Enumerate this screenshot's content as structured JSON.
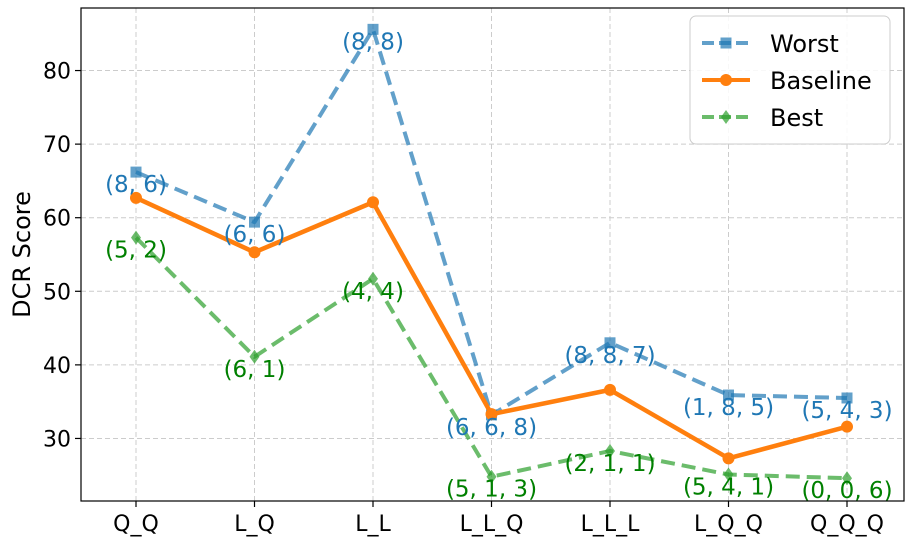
{
  "chart_data": {
    "type": "line",
    "title": "",
    "xlabel": "",
    "ylabel": "DCR Score",
    "categories": [
      "Q_Q",
      "L_Q",
      "L_L",
      "L_L_Q",
      "L_L_L",
      "L_Q_Q",
      "Q_Q_Q"
    ],
    "ylim": [
      21.5,
      88.5
    ],
    "yticks": [
      30,
      40,
      50,
      60,
      70,
      80
    ],
    "grid": true,
    "legend_position": "top-right",
    "series": [
      {
        "name": "Worst",
        "color": "#1f77b4",
        "style": "dashed",
        "marker": "square",
        "values": [
          66.2,
          59.4,
          85.6,
          33.2,
          43.0,
          35.9,
          35.5
        ],
        "annotations": [
          "(8, 6)",
          "(6, 6)",
          "(8, 8)",
          "(6, 6, 8)",
          "(8, 8, 7)",
          "(1, 8, 5)",
          "(5, 4, 3)"
        ]
      },
      {
        "name": "Baseline",
        "color": "#ff7f0e",
        "style": "solid",
        "marker": "circle",
        "values": [
          62.7,
          55.3,
          62.1,
          33.3,
          36.6,
          27.3,
          31.6
        ],
        "annotations": []
      },
      {
        "name": "Best",
        "color": "#2ca02c",
        "style": "dashed",
        "marker": "diamond",
        "values": [
          57.3,
          41.1,
          51.7,
          24.8,
          28.3,
          25.1,
          24.6
        ],
        "annotations": [
          "(5, 2)",
          "(6, 1)",
          "(4, 4)",
          "(5, 1, 3)",
          "(2, 1, 1)",
          "(5, 4, 1)",
          "(0, 0, 6)"
        ]
      }
    ]
  }
}
